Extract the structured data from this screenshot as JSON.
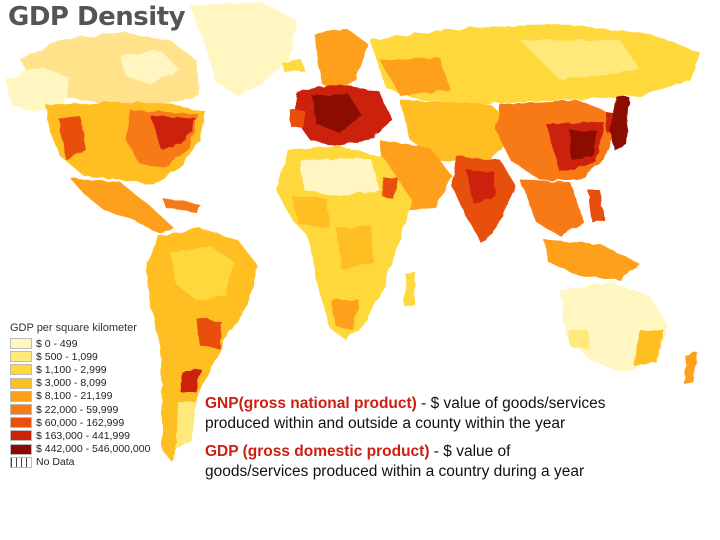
{
  "title": "GDP Density",
  "legend": {
    "title": "GDP per square kilometer",
    "items": [
      {
        "label": "$ 0 - 499",
        "color": "#fff6c2"
      },
      {
        "label": "$ 500 - 1,099",
        "color": "#ffe97a"
      },
      {
        "label": "$ 1,100 - 2,999",
        "color": "#ffd83a"
      },
      {
        "label": "$ 3,000 - 8,099",
        "color": "#ffbf22"
      },
      {
        "label": "$ 8,100 - 21,199",
        "color": "#ffa01a"
      },
      {
        "label": "$ 22,000 - 59,999",
        "color": "#f77a12"
      },
      {
        "label": "$ 60,000 - 162,999",
        "color": "#e8500c"
      },
      {
        "label": "$ 163,000 - 441,999",
        "color": "#cc2208"
      },
      {
        "label": "$ 442,000 - 546,000,000",
        "color": "#8a0a04"
      }
    ],
    "no_data_label": "No Data"
  },
  "definitions": [
    {
      "term": "GNP(gross national product)",
      "text": " - $ value of goods/services produced within and outside a county within the year"
    },
    {
      "term": "GDP (gross domestic product)",
      "text": " - $ value of goods/services produced within a country during a year"
    }
  ]
}
